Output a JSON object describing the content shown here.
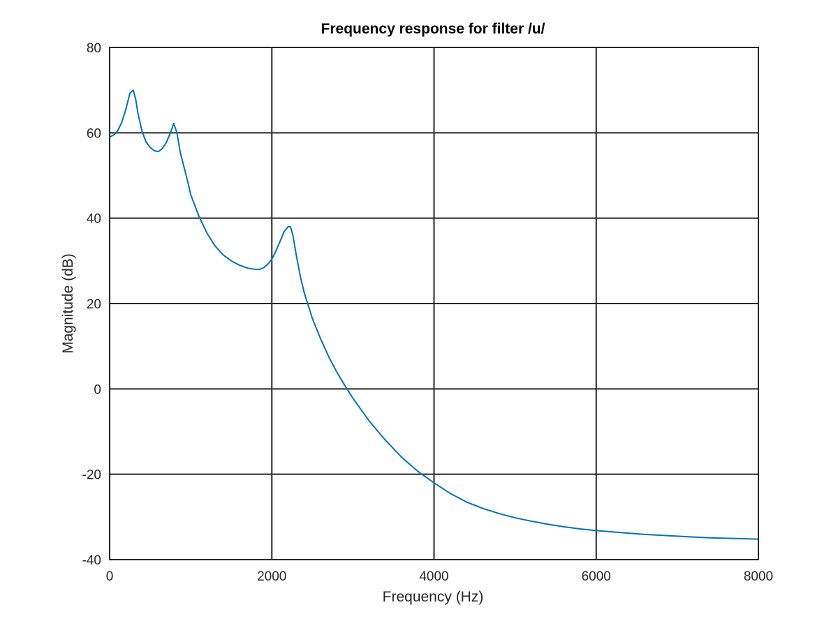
{
  "chart_data": {
    "type": "line",
    "title": "Frequency response for filter /u/",
    "xlabel": "Frequency (Hz)",
    "ylabel": "Magnitude (dB)",
    "xlim": [
      0,
      8000
    ],
    "ylim": [
      -40,
      80
    ],
    "xticks": [
      0,
      2000,
      4000,
      6000,
      8000
    ],
    "xtick_labels": [
      "0",
      "2000",
      "4000",
      "6000",
      "8000"
    ],
    "yticks": [
      -40,
      -20,
      0,
      20,
      40,
      60,
      80
    ],
    "ytick_labels": [
      "-40",
      "-20",
      "0",
      "20",
      "40",
      "60",
      "80"
    ],
    "grid": true,
    "series": [
      {
        "color": "#0072bd",
        "x": [
          0,
          50,
          100,
          150,
          200,
          250,
          290,
          320,
          350,
          400,
          450,
          500,
          550,
          600,
          650,
          700,
          750,
          790,
          830,
          870,
          910,
          960,
          1000,
          1100,
          1200,
          1300,
          1400,
          1500,
          1600,
          1700,
          1800,
          1850,
          1900,
          1950,
          2000,
          2050,
          2100,
          2150,
          2200,
          2230,
          2260,
          2300,
          2350,
          2400,
          2500,
          2600,
          2700,
          2800,
          2900,
          3000,
          3200,
          3400,
          3600,
          3800,
          4000,
          4200,
          4400,
          4600,
          4800,
          5000,
          5200,
          5400,
          5600,
          5800,
          6000,
          6200,
          6400,
          6600,
          6800,
          7000,
          7200,
          7400,
          7600,
          7800,
          8000
        ],
        "y": [
          59,
          59.5,
          60.5,
          62.5,
          65.5,
          69.3,
          70,
          68,
          64.5,
          60.3,
          57.8,
          56.6,
          55.8,
          55.6,
          56.3,
          57.8,
          60,
          62.2,
          60,
          55.5,
          52.5,
          48.8,
          45.5,
          40.5,
          36.5,
          33.5,
          31.4,
          30,
          29,
          28.3,
          28,
          28,
          28.4,
          29.2,
          30.4,
          32.3,
          34.5,
          36.8,
          38,
          38,
          36,
          31.5,
          26.5,
          22.5,
          16.5,
          11.8,
          7.6,
          4,
          0.8,
          -2.2,
          -7.5,
          -12,
          -16,
          -19.3,
          -22,
          -24.5,
          -26.5,
          -28,
          -29.2,
          -30.2,
          -31,
          -31.7,
          -32.3,
          -32.8,
          -33.2,
          -33.5,
          -33.8,
          -34.1,
          -34.3,
          -34.5,
          -34.7,
          -34.9,
          -35,
          -35.1,
          -35.2
        ]
      }
    ]
  }
}
